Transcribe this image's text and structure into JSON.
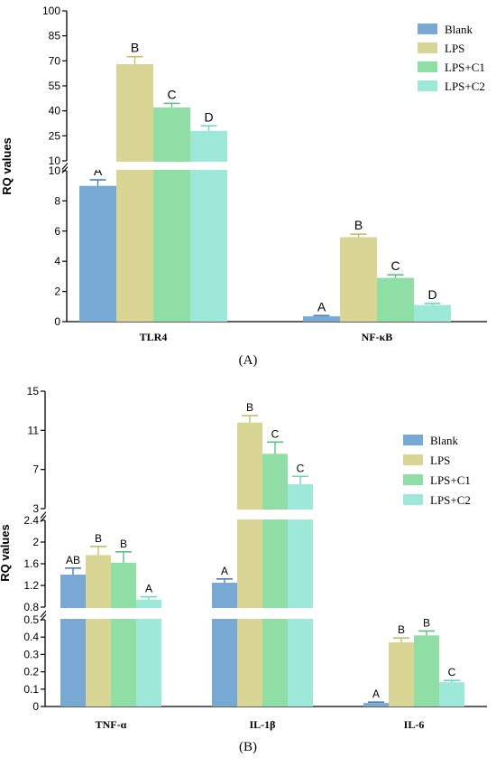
{
  "colors": {
    "Blank": "#78a9d4",
    "LPS": "#d9d594",
    "LPS+C1": "#8fdea6",
    "LPS+C2": "#9ee8d9",
    "errorbar": {
      "Blank": "#4d7fae",
      "LPS": "#c4be6c",
      "LPS+C1": "#5cc07b",
      "LPS+C2": "#6fd3c0"
    }
  },
  "chart_data": [
    {
      "type": "bar",
      "panel_label": "(A)",
      "ylabel": "RQ values",
      "categories": [
        "TLR4",
        "NF-κB"
      ],
      "legend_position": "top-right",
      "axis_breaks": [
        {
          "range": [
            0,
            10
          ],
          "ticks": [
            0,
            2,
            4,
            6,
            8,
            10
          ]
        },
        {
          "range": [
            10,
            100
          ],
          "ticks": [
            10,
            25,
            40,
            55,
            70,
            85,
            100
          ]
        }
      ],
      "series": [
        {
          "name": "Blank",
          "values": [
            9.0,
            0.35
          ],
          "errors": [
            0.4,
            0.05
          ],
          "letters": [
            "A",
            "A"
          ]
        },
        {
          "name": "LPS",
          "values": [
            68.0,
            5.6
          ],
          "errors": [
            4.5,
            0.2
          ],
          "letters": [
            "B",
            "B"
          ]
        },
        {
          "name": "LPS+C1",
          "values": [
            42.0,
            2.9
          ],
          "errors": [
            2.5,
            0.2
          ],
          "letters": [
            "C",
            "C"
          ]
        },
        {
          "name": "LPS+C2",
          "values": [
            28.0,
            1.1
          ],
          "errors": [
            3.0,
            0.1
          ],
          "letters": [
            "D",
            "D"
          ]
        }
      ]
    },
    {
      "type": "bar",
      "panel_label": "(B)",
      "ylabel": "RQ values",
      "categories": [
        "TNF-α",
        "IL-1β",
        "IL-6"
      ],
      "legend_position": "right",
      "axis_breaks": [
        {
          "range": [
            0,
            0.5
          ],
          "ticks": [
            0.0,
            0.1,
            0.2,
            0.3,
            0.4,
            0.5
          ]
        },
        {
          "range": [
            0.8,
            2.4
          ],
          "ticks": [
            0.8,
            1.2,
            1.6,
            2.0,
            2.4
          ]
        },
        {
          "range": [
            3,
            15
          ],
          "ticks": [
            3,
            7,
            11,
            15
          ]
        }
      ],
      "series": [
        {
          "name": "Blank",
          "values": [
            1.4,
            1.25,
            0.02
          ],
          "errors": [
            0.12,
            0.07,
            0.005
          ],
          "letters": [
            "AB",
            "A",
            "A"
          ]
        },
        {
          "name": "LPS",
          "values": [
            1.76,
            11.8,
            0.37
          ],
          "errors": [
            0.16,
            0.7,
            0.025
          ],
          "letters": [
            "B",
            "B",
            "B"
          ]
        },
        {
          "name": "LPS+C1",
          "values": [
            1.62,
            8.6,
            0.41
          ],
          "errors": [
            0.2,
            1.2,
            0.025
          ],
          "letters": [
            "B",
            "C",
            "B"
          ]
        },
        {
          "name": "LPS+C2",
          "values": [
            0.94,
            5.5,
            0.14
          ],
          "errors": [
            0.05,
            0.8,
            0.01
          ],
          "letters": [
            "A",
            "C",
            "C"
          ]
        }
      ]
    }
  ]
}
